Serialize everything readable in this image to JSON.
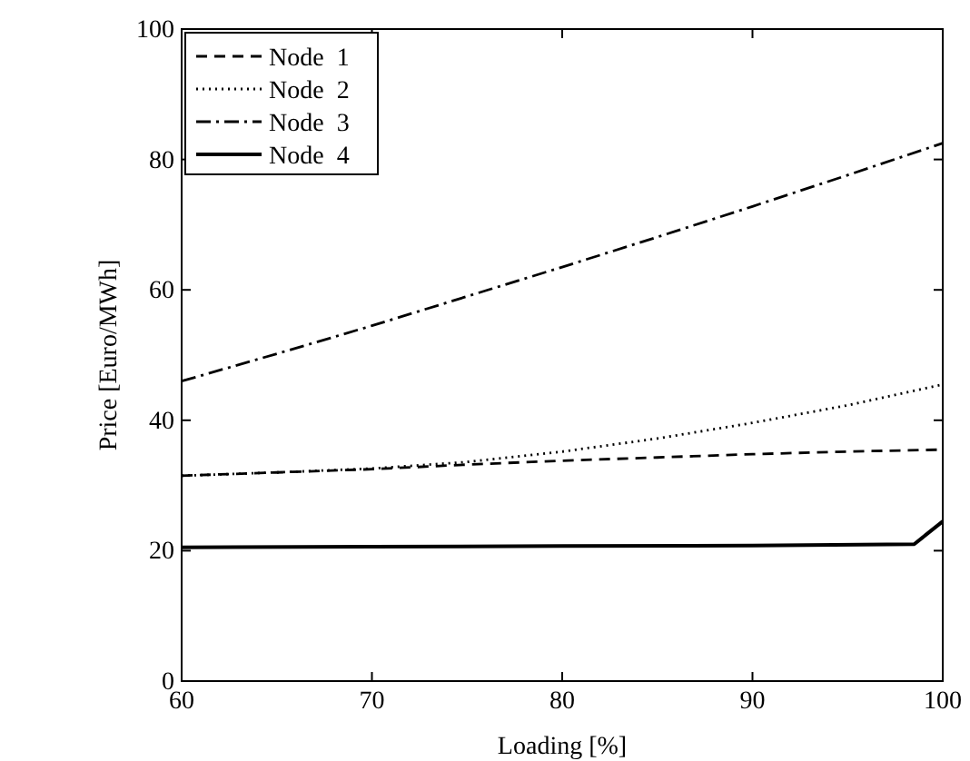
{
  "chart_data": {
    "type": "line",
    "xlabel": "Loading [%]",
    "ylabel": "Price [Euro/MWh]",
    "xlim": [
      60,
      100
    ],
    "xticks": [
      60,
      70,
      80,
      90,
      100
    ],
    "ylim": [
      0,
      100
    ],
    "yticks": [
      0,
      20,
      40,
      60,
      80,
      100
    ],
    "grid": false,
    "legend": "top left",
    "marker": "none",
    "series": [
      {
        "name": "Node  1",
        "color": "#000000",
        "line_style": "dashed",
        "x": [
          60,
          65,
          70,
          75,
          80,
          85,
          90,
          95,
          100
        ],
        "values": [
          31.5,
          32,
          32.5,
          33.2,
          33.8,
          34.3,
          34.8,
          35.2,
          35.5
        ]
      },
      {
        "name": "Node  2",
        "color": "#000000",
        "line_style": "dotted",
        "x": [
          60,
          65,
          70,
          75,
          80,
          85,
          90,
          95,
          100
        ],
        "values": [
          31.5,
          32,
          32.6,
          33.6,
          35.2,
          37.2,
          39.6,
          42.3,
          45.5
        ]
      },
      {
        "name": "Node  3",
        "color": "#000000",
        "line_style": "dashdot",
        "x": [
          60,
          65,
          70,
          75,
          80,
          85,
          90,
          95,
          100
        ],
        "values": [
          46,
          50.2,
          54.5,
          59,
          63.5,
          68.1,
          72.8,
          77.6,
          82.5
        ]
      },
      {
        "name": "Node  4",
        "color": "#000000",
        "line_style": "solid",
        "x": [
          60,
          70,
          80,
          90,
          98.5,
          100
        ],
        "values": [
          20.5,
          20.6,
          20.7,
          20.8,
          21,
          24.5
        ]
      }
    ]
  }
}
